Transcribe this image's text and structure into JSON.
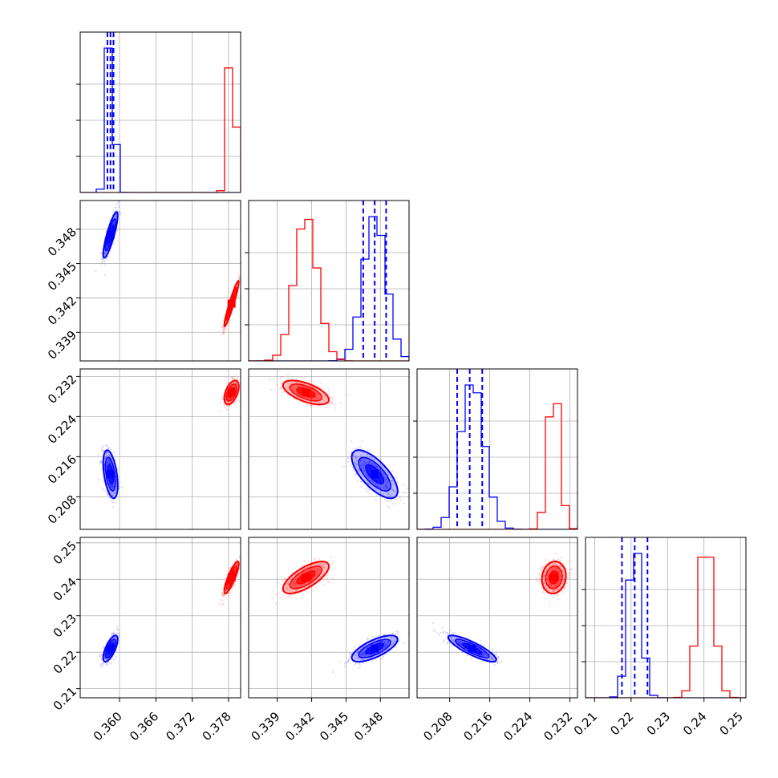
{
  "chart_data": {
    "type": "corner",
    "variables": [
      {
        "range": [
          0.3535,
          0.38
        ],
        "ticks": [
          "0.360",
          "0.366",
          "0.372",
          "0.378"
        ]
      },
      {
        "range": [
          0.3365,
          0.3505
        ],
        "ticks": [
          "0.339",
          "0.342",
          "0.345",
          "0.348"
        ]
      },
      {
        "range": [
          0.2015,
          0.2335
        ],
        "ticks": [
          "0.208",
          "0.216",
          "0.224",
          "0.232"
        ]
      },
      {
        "range": [
          0.2075,
          0.2515
        ],
        "ticks": [
          "0.21",
          "0.22",
          "0.23",
          "0.24",
          "0.25"
        ]
      }
    ],
    "series": [
      {
        "color": "#0000ff",
        "mean": [
          0.3585,
          0.3475,
          0.2125,
          0.221
        ],
        "std": [
          0.0006,
          0.001,
          0.0024,
          0.0018
        ],
        "quantiles": [
          [
            0.358,
            0.3585,
            0.359
          ],
          [
            0.3465,
            0.3475,
            0.3485
          ],
          [
            0.2095,
            0.212,
            0.2145
          ],
          [
            0.2175,
            0.221,
            0.2245
          ]
        ]
      },
      {
        "color": "#ff0000",
        "mean": [
          0.3785,
          0.3415,
          0.2288,
          0.2405
        ],
        "std": [
          0.0006,
          0.001,
          0.0012,
          0.0022
        ],
        "quantiles": []
      }
    ],
    "correlations": {
      "1-0": [
        0.85,
        0.95
      ],
      "2-0": [
        -0.45,
        0.5
      ],
      "2-1": [
        -0.7,
        -0.6
      ],
      "3-0": [
        0.7,
        0.85
      ],
      "3-1": [
        0.7,
        0.7
      ],
      "3-2": [
        -0.85,
        0.1
      ]
    },
    "grid": true
  }
}
